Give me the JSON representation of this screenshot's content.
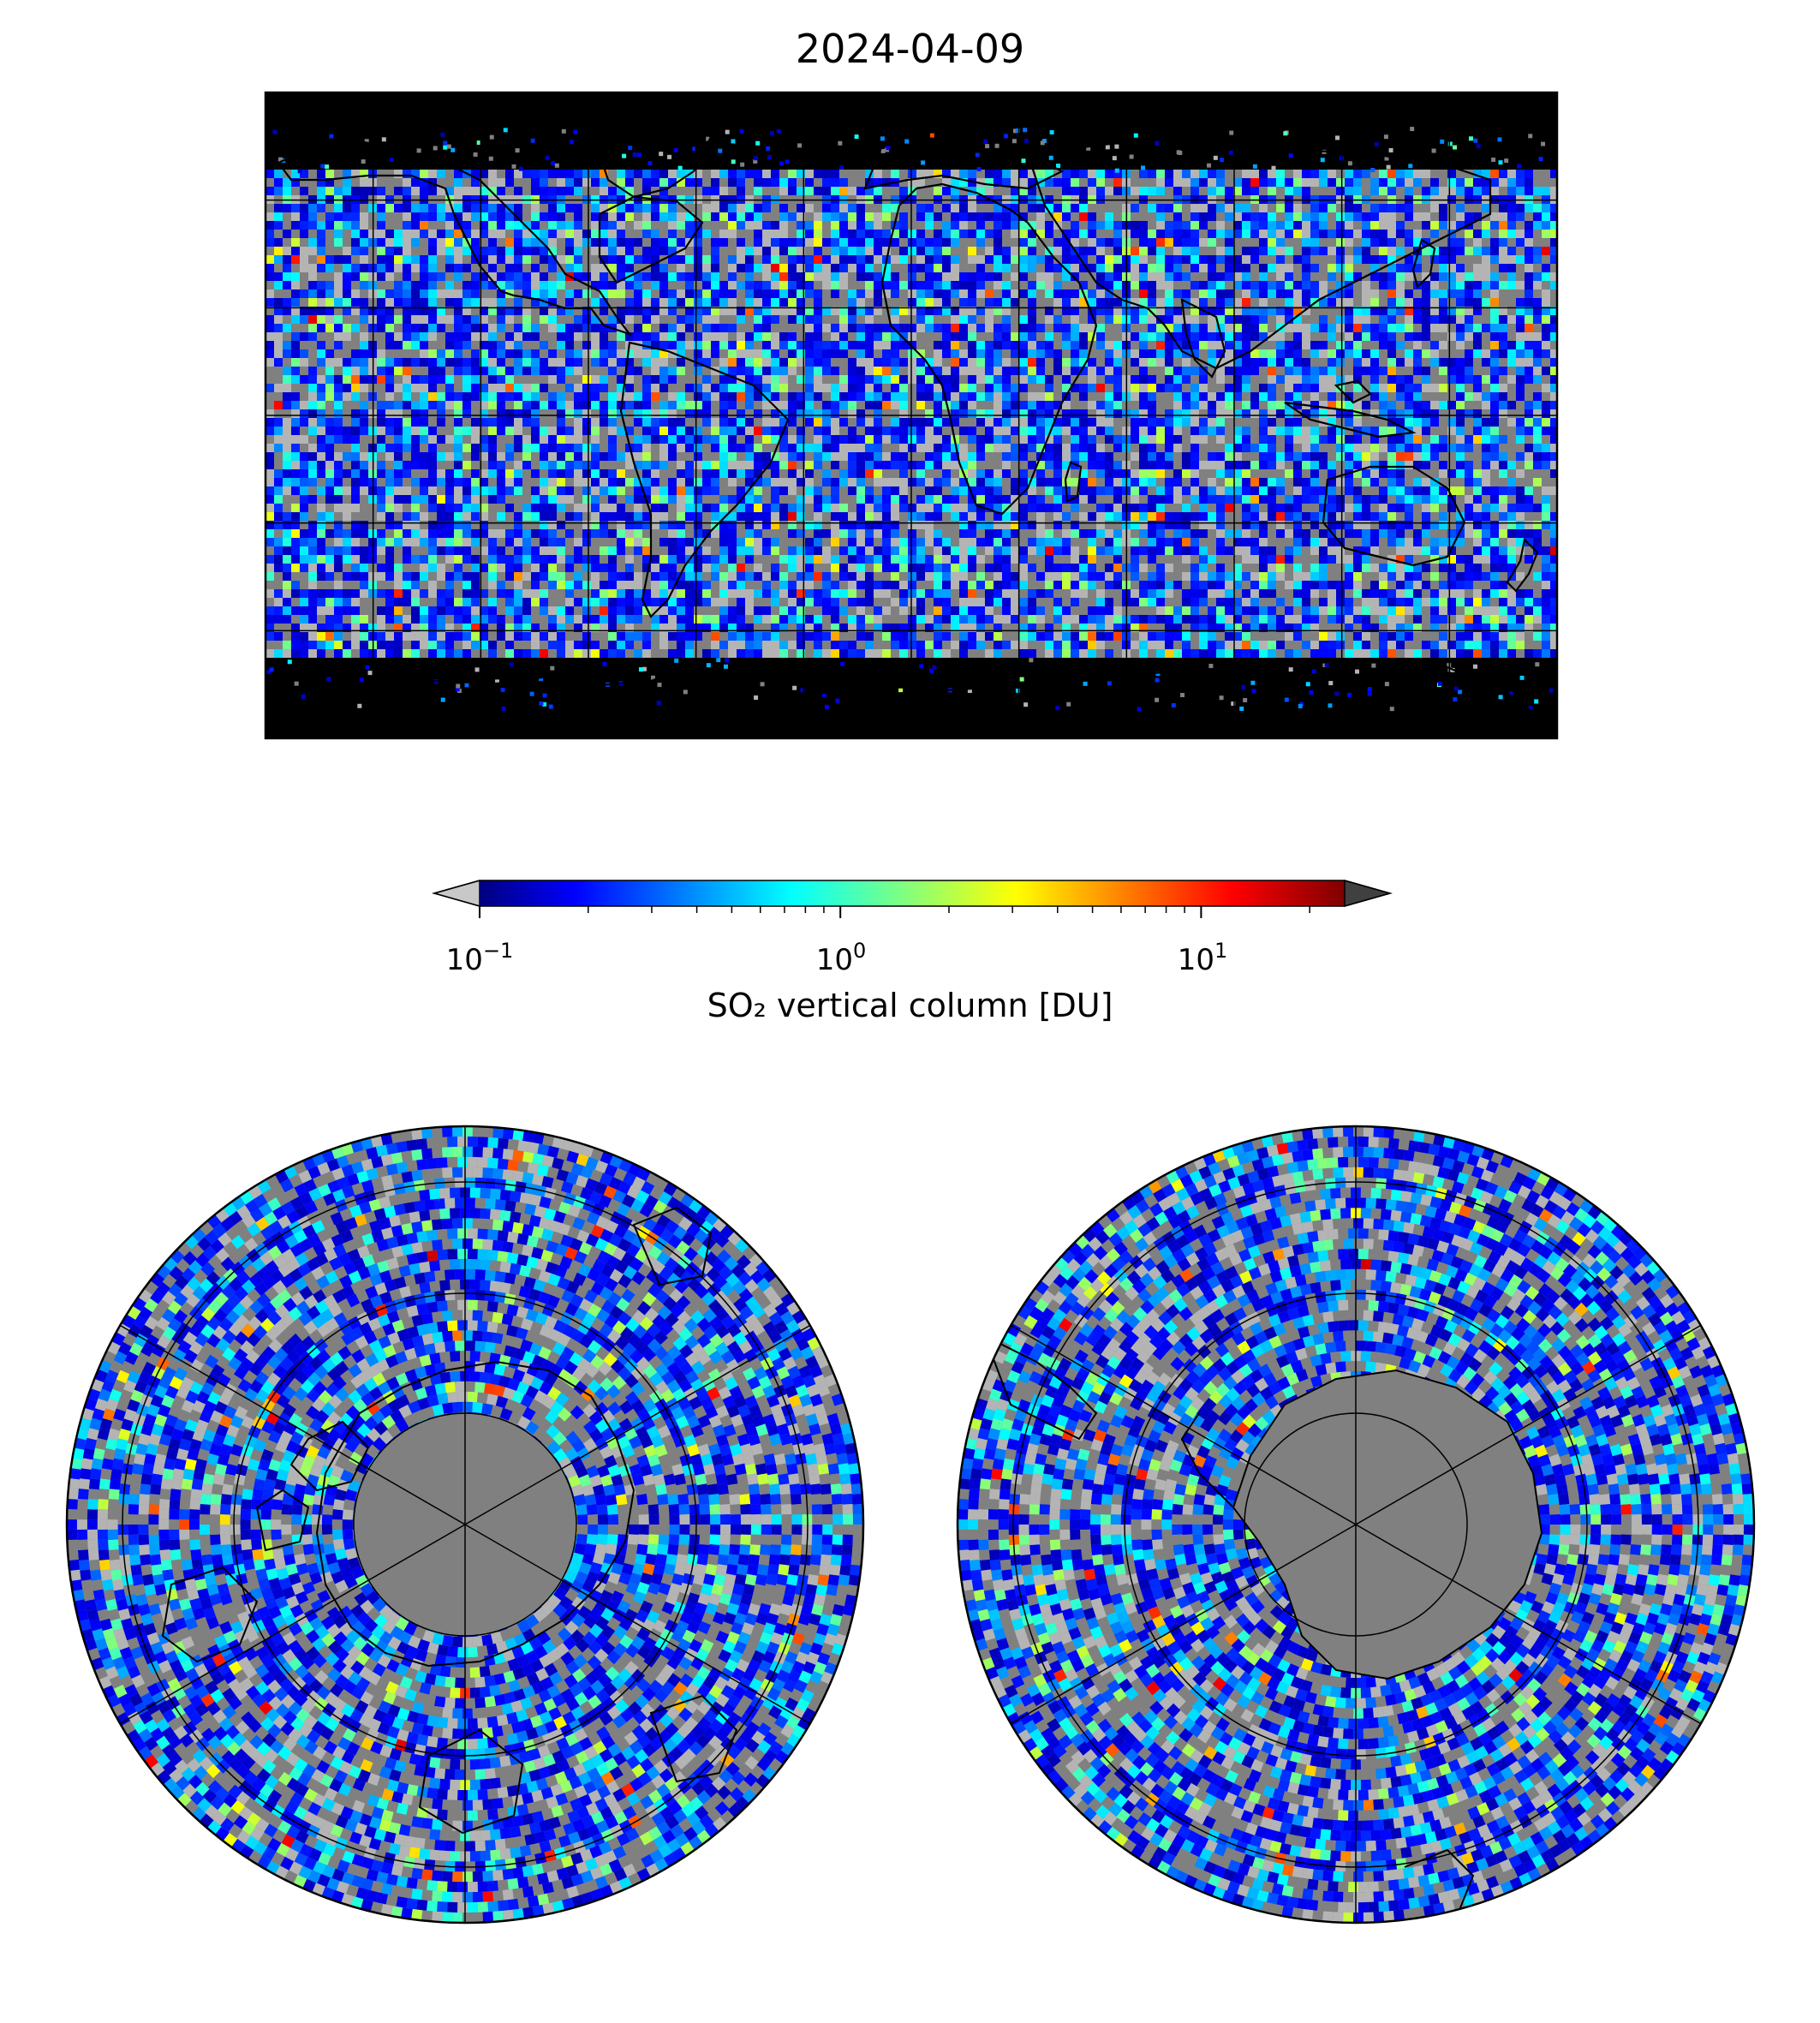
{
  "title": "2024-04-09",
  "colorbar": {
    "label": "SO₂ vertical column [DU]",
    "scale": "log",
    "range": [
      0.1,
      25
    ],
    "ticks": [
      {
        "value": 0.1,
        "base": "10",
        "exp": "−1"
      },
      {
        "value": 1,
        "base": "10",
        "exp": "0"
      },
      {
        "value": 10,
        "base": "10",
        "exp": "1"
      }
    ],
    "extend": "both",
    "under_color": "#c8c8c8",
    "over_color": "#404040",
    "colormap": "jet"
  },
  "map": {
    "background_color": "#808080",
    "land_outline_color": "#000000",
    "panels": [
      "global-plate-carree",
      "north-polar-stereo",
      "south-polar-stereo"
    ]
  }
}
